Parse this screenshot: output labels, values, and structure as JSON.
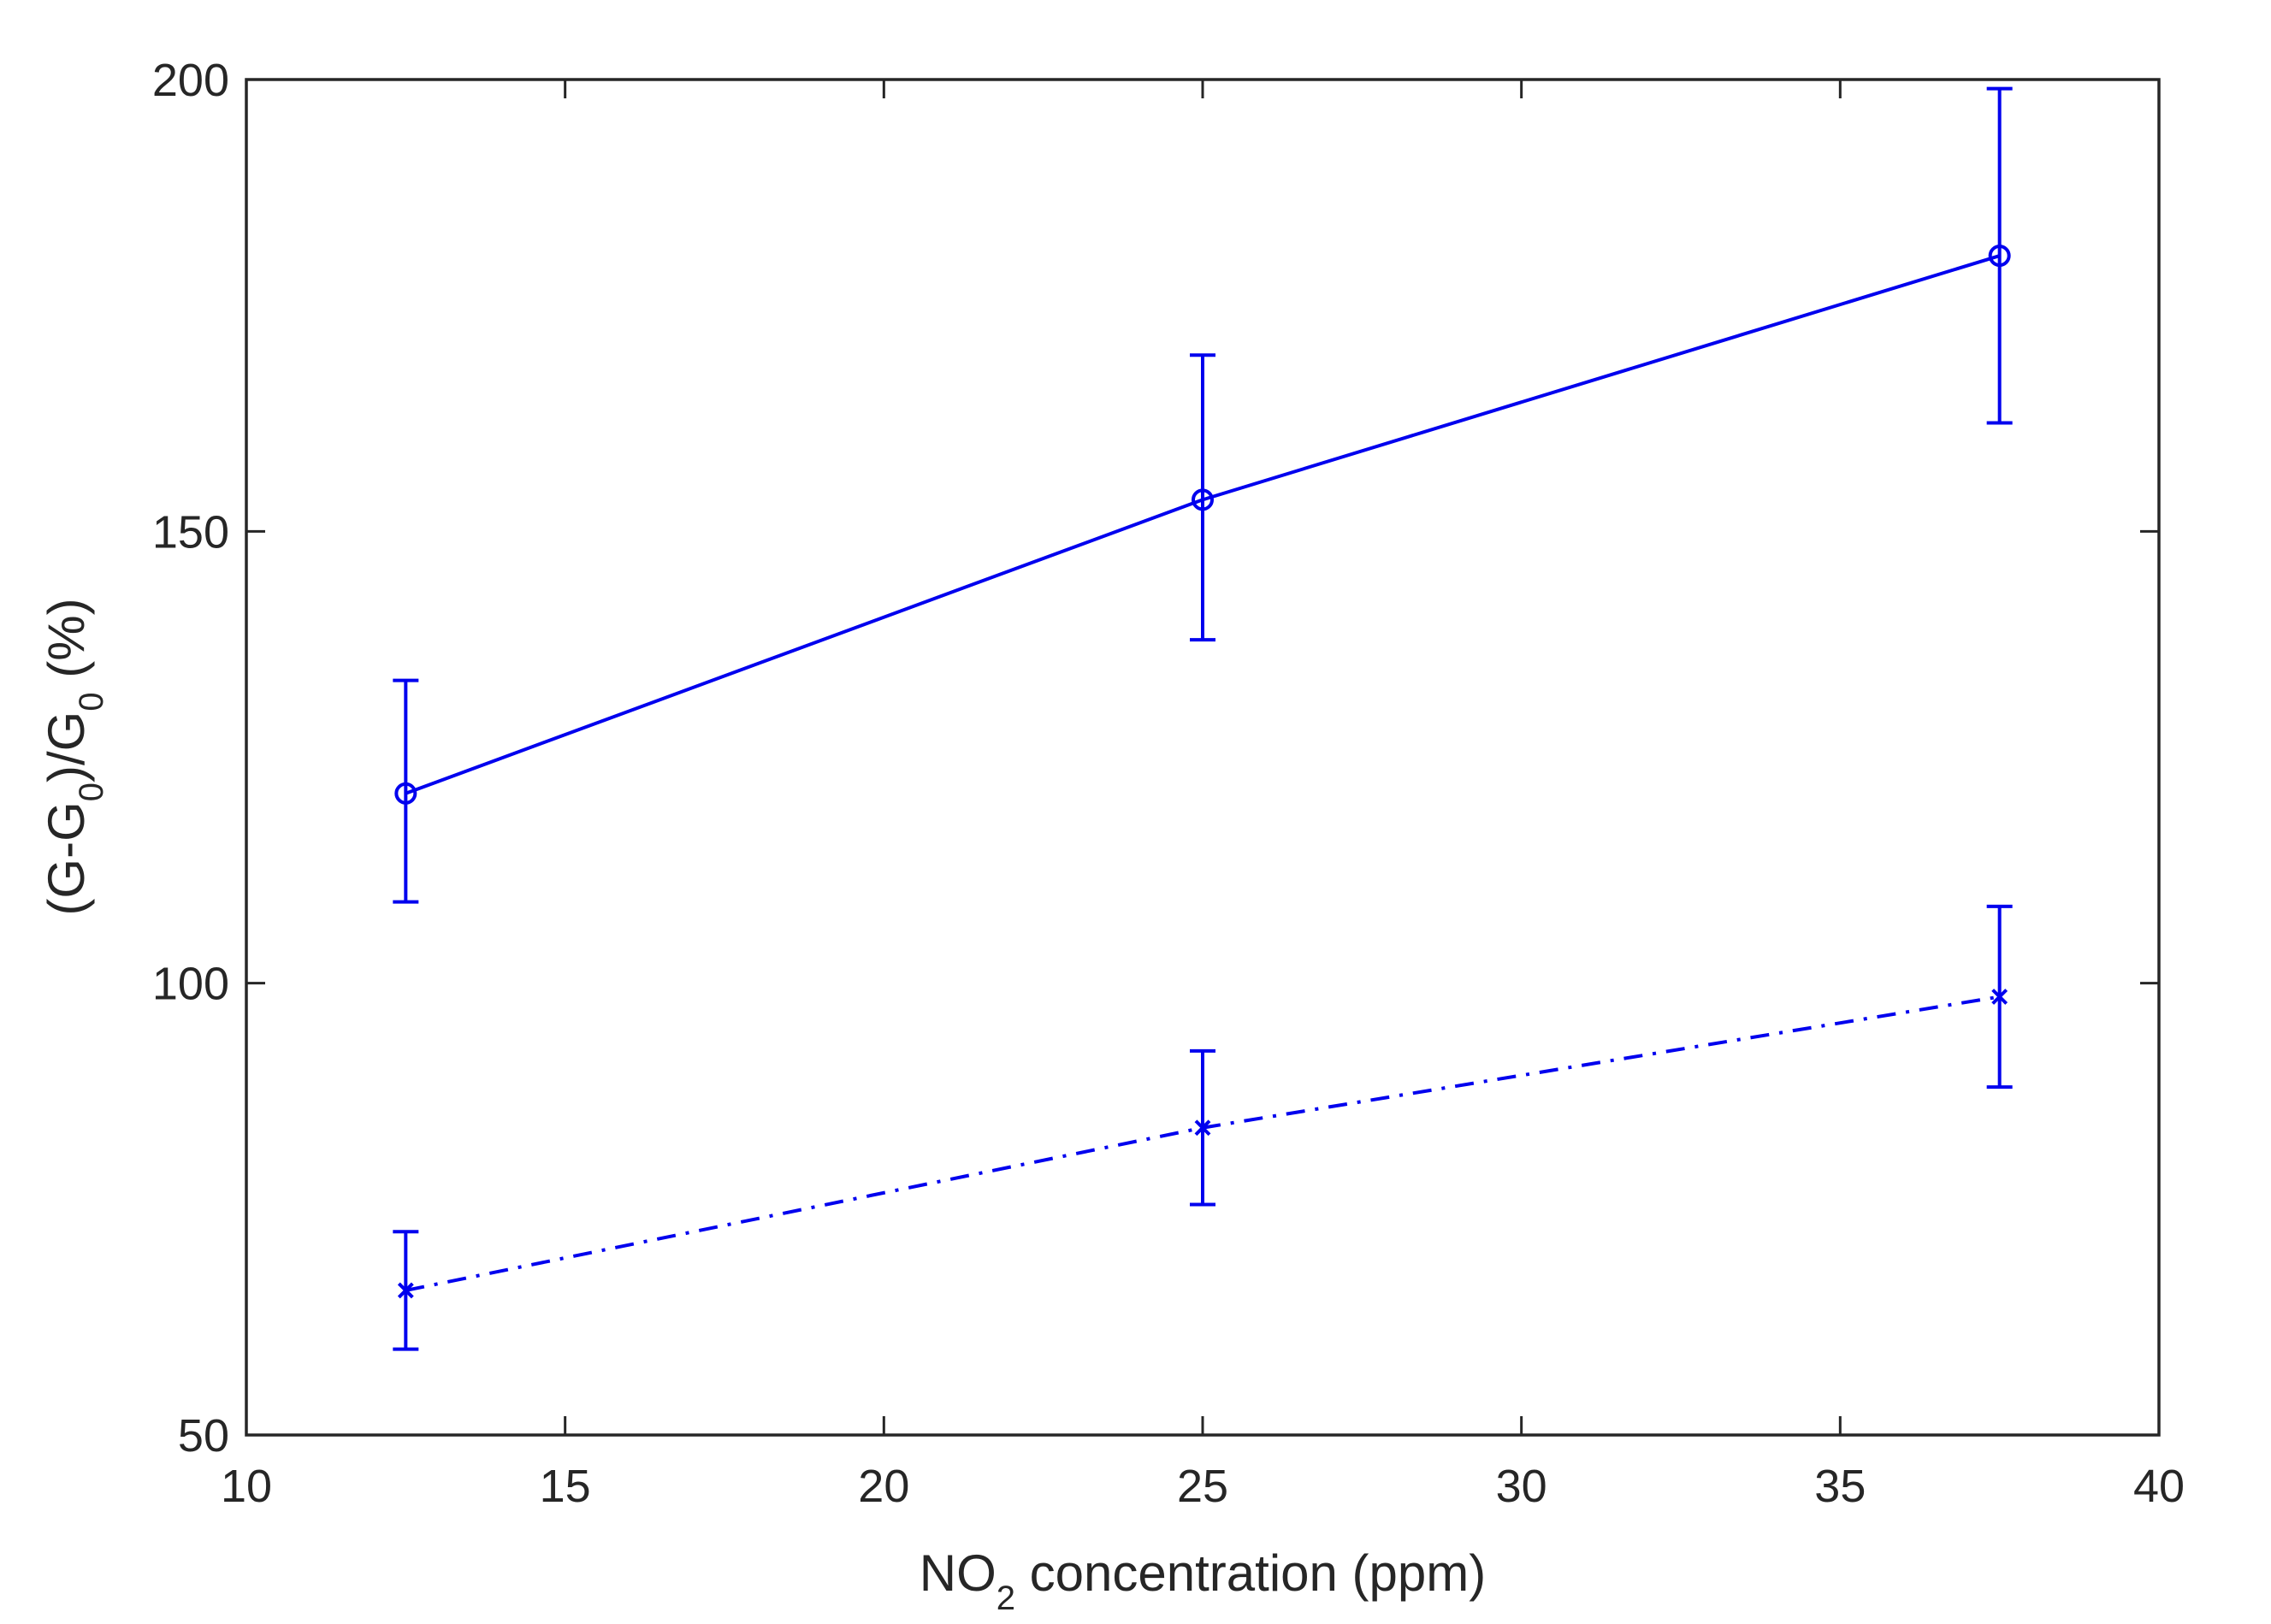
{
  "chart_data": {
    "type": "line",
    "xlabel": {
      "pre": "NO",
      "sub": "2",
      "post": " concentration (ppm)"
    },
    "ylabel": {
      "p1": "(G-G",
      "s1": "0",
      "p2": ")/G",
      "s2": "0",
      "p3": " (%)"
    },
    "xlim": [
      10,
      40
    ],
    "ylim": [
      50,
      200
    ],
    "xticks": [
      10,
      15,
      20,
      25,
      30,
      35,
      40
    ],
    "yticks": [
      50,
      100,
      150,
      200
    ],
    "xtick_labels": [
      "10",
      "15",
      "20",
      "25",
      "30",
      "35",
      "40"
    ],
    "ytick_labels": [
      "50",
      "100",
      "150",
      "200"
    ],
    "grid": false,
    "series": [
      {
        "marker": "circle",
        "line_style": "solid",
        "color": "#0000ee",
        "x": [
          12.5,
          25,
          37.5
        ],
        "y": [
          121,
          153.5,
          180.5
        ],
        "err_low": [
          109,
          138,
          162
        ],
        "err_high": [
          133.5,
          169.5,
          199
        ]
      },
      {
        "marker": "x",
        "line_style": "dash-dot",
        "color": "#0000ee",
        "x": [
          12.5,
          25,
          37.5
        ],
        "y": [
          66,
          84,
          98.5
        ],
        "err_low": [
          59.5,
          75.5,
          88.5
        ],
        "err_high": [
          72.5,
          92.5,
          108.5
        ]
      }
    ]
  }
}
